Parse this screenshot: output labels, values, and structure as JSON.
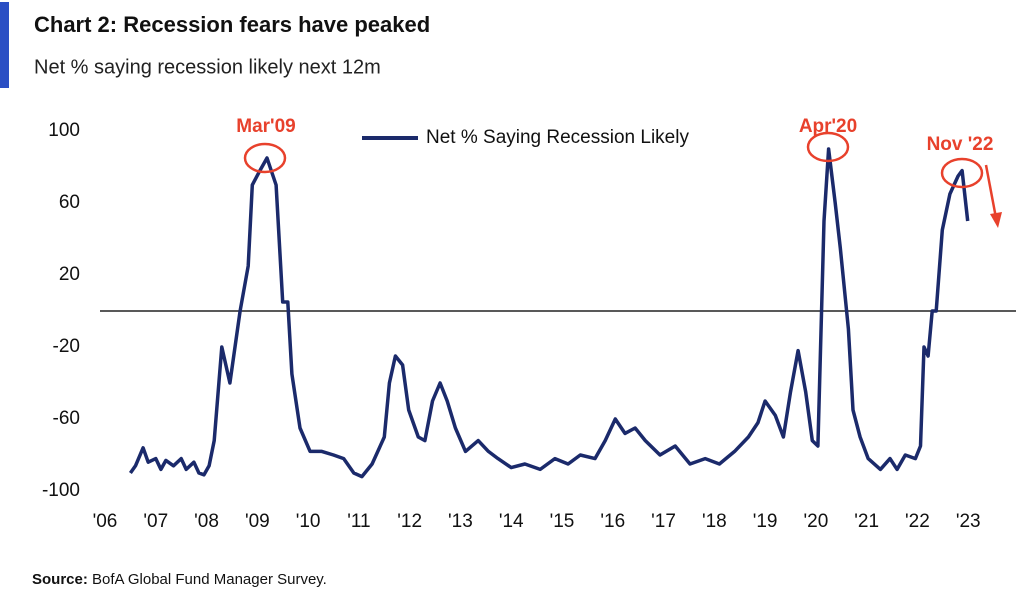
{
  "chart_data": {
    "type": "line",
    "title": "Chart 2: Recession fears have peaked",
    "subtitle": "Net % saying recession likely next 12m",
    "source_label": "Source:",
    "source_text": "BofA Global Fund Manager Survey.",
    "annotations": [
      "Mar'09",
      "Apr'20",
      "Nov '22"
    ],
    "xlim": [
      2006,
      2024
    ],
    "xticks": [
      {
        "value": 2006,
        "label": "'06"
      },
      {
        "value": 2007,
        "label": "'07"
      },
      {
        "value": 2008,
        "label": "'08"
      },
      {
        "value": 2009,
        "label": "'09"
      },
      {
        "value": 2010,
        "label": "'10"
      },
      {
        "value": 2011,
        "label": "'11"
      },
      {
        "value": 2012,
        "label": "'12"
      },
      {
        "value": 2013,
        "label": "'13"
      },
      {
        "value": 2014,
        "label": "'14"
      },
      {
        "value": 2015,
        "label": "'15"
      },
      {
        "value": 2016,
        "label": "'16"
      },
      {
        "value": 2017,
        "label": "'17"
      },
      {
        "value": 2018,
        "label": "'18"
      },
      {
        "value": 2019,
        "label": "'19"
      },
      {
        "value": 2020,
        "label": "'20"
      },
      {
        "value": 2021,
        "label": "'21"
      },
      {
        "value": 2022,
        "label": "'22"
      },
      {
        "value": 2023,
        "label": "'23"
      }
    ],
    "ylim": [
      -100,
      100
    ],
    "yticks": [
      -100,
      -60,
      -20,
      20,
      60,
      100
    ],
    "x": [
      2006.5,
      2006.6,
      2006.75,
      2006.85,
      2007.0,
      2007.1,
      2007.2,
      2007.35,
      2007.5,
      2007.6,
      2007.75,
      2007.85,
      2007.95,
      2008.05,
      2008.15,
      2008.3,
      2008.46,
      2008.66,
      2008.82,
      2008.9,
      2009.05,
      2009.19,
      2009.37,
      2009.5,
      2009.6,
      2009.68,
      2009.84,
      2010.04,
      2010.27,
      2010.5,
      2010.7,
      2010.9,
      2011.06,
      2011.26,
      2011.5,
      2011.6,
      2011.72,
      2011.86,
      2011.98,
      2012.17,
      2012.3,
      2012.45,
      2012.6,
      2012.74,
      2012.9,
      2013.1,
      2013.35,
      2013.55,
      2013.74,
      2014.0,
      2014.27,
      2014.57,
      2014.86,
      2015.12,
      2015.36,
      2015.65,
      2015.85,
      2016.05,
      2016.24,
      2016.44,
      2016.64,
      2016.93,
      2017.23,
      2017.52,
      2017.82,
      2018.1,
      2018.4,
      2018.67,
      2018.86,
      2019.0,
      2019.2,
      2019.36,
      2019.5,
      2019.65,
      2019.8,
      2019.93,
      2020.04,
      2020.16,
      2020.25,
      2020.38,
      2020.48,
      2020.64,
      2020.73,
      2020.87,
      2021.03,
      2021.27,
      2021.46,
      2021.6,
      2021.76,
      2021.96,
      2022.06,
      2022.13,
      2022.21,
      2022.29,
      2022.37,
      2022.49,
      2022.64,
      2022.8,
      2022.88,
      2022.99
    ],
    "series": [
      {
        "name": "Net % Saying Recession Likely",
        "color": "#1b2a6b",
        "values": [
          -90,
          -86,
          -76,
          -84,
          -82,
          -88,
          -83,
          -86,
          -82,
          -88,
          -84,
          -90,
          -91,
          -86,
          -72,
          -20,
          -40,
          0,
          25,
          70,
          78,
          85,
          70,
          5,
          5,
          -35,
          -65,
          -78,
          -78,
          -80,
          -82,
          -90,
          -92,
          -85,
          -70,
          -40,
          -25,
          -30,
          -55,
          -70,
          -72,
          -50,
          -40,
          -50,
          -65,
          -78,
          -72,
          -78,
          -82,
          -87,
          -85,
          -88,
          -82,
          -85,
          -80,
          -82,
          -72,
          -60,
          -68,
          -65,
          -72,
          -80,
          -75,
          -85,
          -82,
          -85,
          -78,
          -70,
          -62,
          -50,
          -58,
          -70,
          -45,
          -22,
          -45,
          -72,
          -75,
          50,
          90,
          60,
          35,
          -10,
          -55,
          -70,
          -82,
          -88,
          -82,
          -88,
          -80,
          -82,
          -75,
          -20,
          -25,
          0,
          0,
          45,
          65,
          75,
          78,
          50
        ]
      }
    ]
  }
}
